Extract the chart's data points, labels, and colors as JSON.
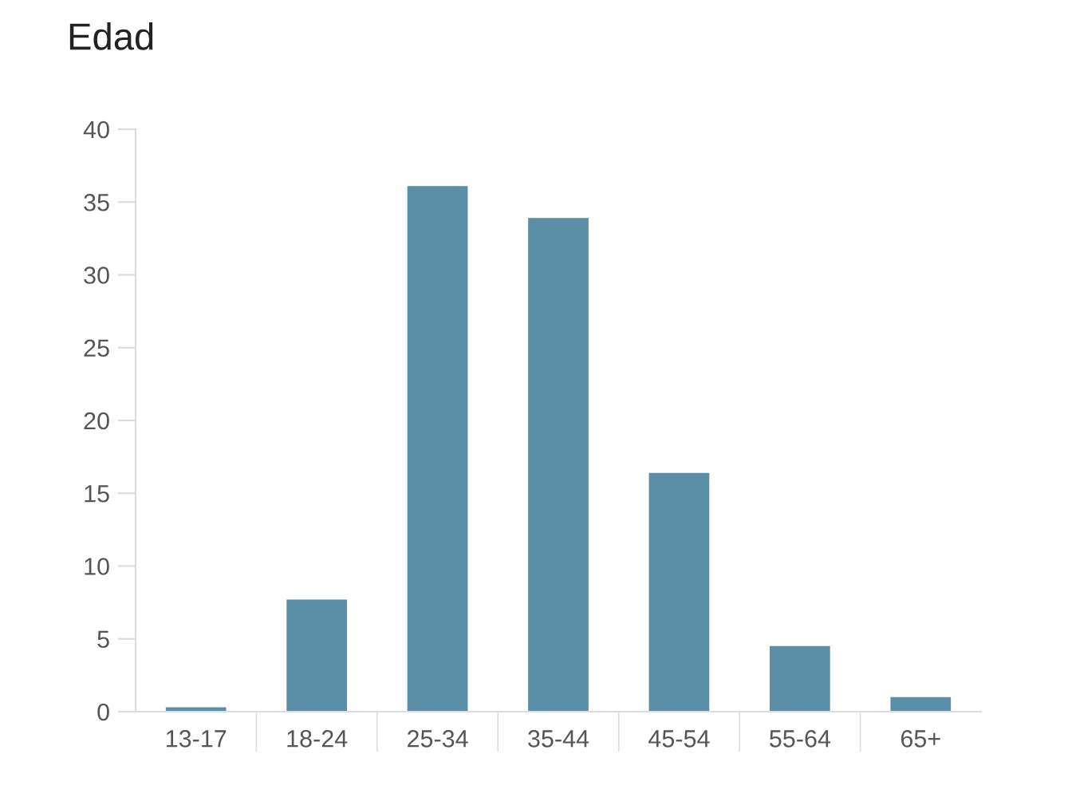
{
  "chart_data": {
    "type": "bar",
    "title": "Edad",
    "categories": [
      "13-17",
      "18-24",
      "25-34",
      "35-44",
      "45-54",
      "55-64",
      "65+"
    ],
    "values": [
      0.3,
      7.7,
      36.1,
      33.9,
      16.4,
      4.5,
      1.0
    ],
    "color": "#5b8fa8",
    "ylim": [
      0,
      40
    ],
    "yticks": [
      0,
      5,
      10,
      15,
      20,
      25,
      30,
      35,
      40
    ],
    "grid": false,
    "legend": false
  }
}
